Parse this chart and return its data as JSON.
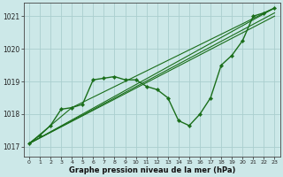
{
  "xlabel": "Graphe pression niveau de la mer (hPa)",
  "xlim": [
    -0.5,
    23.5
  ],
  "ylim": [
    1016.7,
    1021.4
  ],
  "yticks": [
    1017,
    1018,
    1019,
    1020,
    1021
  ],
  "xticks": [
    0,
    1,
    2,
    3,
    4,
    5,
    6,
    7,
    8,
    9,
    10,
    11,
    12,
    13,
    14,
    15,
    16,
    17,
    18,
    19,
    20,
    21,
    22,
    23
  ],
  "background_color": "#cce8e8",
  "grid_color": "#aacece",
  "line_color": "#1a6e1a",
  "main_series": {
    "x": [
      0,
      1,
      2,
      3,
      4,
      5,
      6,
      7,
      8,
      9,
      10,
      11,
      12,
      13,
      14,
      15,
      16,
      17,
      18,
      19,
      20,
      21,
      22,
      23
    ],
    "y": [
      1017.1,
      1017.35,
      1017.65,
      1018.15,
      1018.2,
      1018.3,
      1019.05,
      1019.1,
      1019.15,
      1019.05,
      1019.05,
      1018.85,
      1018.75,
      1018.5,
      1017.8,
      1017.65,
      1018.0,
      1018.5,
      1019.5,
      1019.8,
      1020.25,
      1021.0,
      1021.1,
      1021.25
    ]
  },
  "trend_lines": [
    {
      "x": [
        0,
        23
      ],
      "y": [
        1017.1,
        1021.25
      ]
    },
    {
      "x": [
        0,
        23
      ],
      "y": [
        1017.1,
        1021.1
      ]
    },
    {
      "x": [
        0,
        23
      ],
      "y": [
        1017.1,
        1021.0
      ]
    },
    {
      "x": [
        0,
        4,
        23
      ],
      "y": [
        1017.1,
        1018.2,
        1021.25
      ]
    }
  ]
}
